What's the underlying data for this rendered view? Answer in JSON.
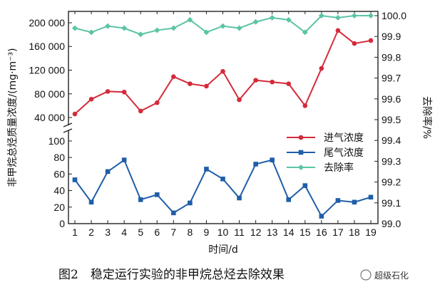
{
  "chart_data": {
    "type": "line",
    "title": "",
    "xlabel": "时间/d",
    "ylabel_left": "非甲烷总烃质量浓度/(mg·m⁻³)",
    "ylabel_right": "去除率/%",
    "categories": [
      "1",
      "2",
      "3",
      "4",
      "5",
      "6",
      "7",
      "8",
      "9",
      "10",
      "11",
      "12",
      "13",
      "14",
      "15",
      "16",
      "17",
      "18",
      "19"
    ],
    "left_axis_upper": {
      "ylim": [
        28000,
        212000
      ],
      "ticks": [
        "40 000",
        "80 000",
        "120 000",
        "160 000",
        "200 000"
      ]
    },
    "left_axis_lower": {
      "ylim": [
        0,
        112
      ],
      "ticks": [
        "0",
        "20",
        "40",
        "60",
        "80",
        "100"
      ]
    },
    "right_axis": {
      "ylim": [
        99.0,
        100.0
      ],
      "ticks": [
        "99.0",
        "99.1",
        "99.2",
        "99.3",
        "99.4",
        "99.5",
        "99.6",
        "99.7",
        "99.8",
        "99.9",
        "100.0"
      ]
    },
    "series": [
      {
        "name": "进气浓度",
        "axis": "left_upper",
        "color": "#d42a3a",
        "marker": "circle",
        "values": [
          46000,
          71000,
          84000,
          83000,
          51000,
          65000,
          109000,
          97000,
          93000,
          118000,
          70000,
          103000,
          100000,
          97000,
          60000,
          123000,
          187000,
          165000,
          170000
        ]
      },
      {
        "name": "尾气浓度",
        "axis": "left_lower",
        "color": "#1f5ea8",
        "marker": "square",
        "values": [
          53,
          26,
          63,
          77,
          29,
          35,
          13,
          25,
          66,
          54,
          31,
          72,
          77,
          29,
          46,
          9,
          28,
          26,
          32
        ]
      },
      {
        "name": "去除率",
        "axis": "right",
        "color": "#5cc4a6",
        "marker": "diamond",
        "values": [
          99.94,
          99.92,
          99.95,
          99.94,
          99.91,
          99.93,
          99.94,
          99.98,
          99.92,
          99.95,
          99.94,
          99.97,
          99.99,
          99.98,
          99.92,
          100.0,
          99.99,
          100.0,
          100.0
        ]
      }
    ],
    "legend": {
      "position": "center-right"
    }
  },
  "caption": "图2　稳定运行实验的非甲烷总烃去除效果",
  "watermark": "超级石化"
}
